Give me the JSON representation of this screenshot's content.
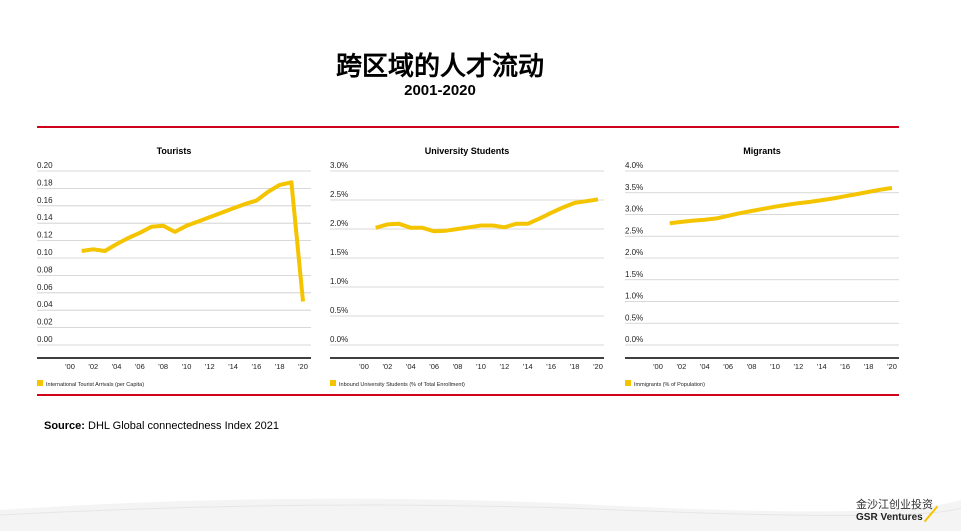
{
  "header": {
    "title": "跨区域的人才流动",
    "subtitle": "2001-2020"
  },
  "source": {
    "label": "Source:",
    "text": "DHL Global connectedness Index 2021"
  },
  "logo": {
    "cn": "金沙江创业投资",
    "en": "GSR Ventures"
  },
  "colors": {
    "line": "#f5c400",
    "rule": "#d0021b",
    "grid": "#cccccc",
    "axis": "#000000"
  },
  "chart_data": [
    {
      "type": "line",
      "title": "Tourists",
      "x": [
        2001,
        2002,
        2003,
        2004,
        2005,
        2006,
        2007,
        2008,
        2009,
        2010,
        2011,
        2012,
        2013,
        2014,
        2015,
        2016,
        2017,
        2018,
        2019,
        2020
      ],
      "x_tick_labels": [
        "'00",
        "'02",
        "'04",
        "'06",
        "'08",
        "'10",
        "'12",
        "'14",
        "'16",
        "'18",
        "'20"
      ],
      "y_tick_labels": [
        "0.20",
        "0.18",
        "0.16",
        "0.14",
        "0.12",
        "0.10",
        "0.08",
        "0.06",
        "0.04",
        "0.02",
        "0.00"
      ],
      "ylim": [
        0,
        0.2
      ],
      "xlim": [
        2000,
        2020
      ],
      "grid": true,
      "legend": "bottom-left",
      "series": [
        {
          "name": "International Tourist Arrivals (per Capita)",
          "values": [
            0.108,
            0.11,
            0.108,
            0.116,
            0.123,
            0.129,
            0.136,
            0.137,
            0.13,
            0.137,
            0.142,
            0.147,
            0.152,
            0.157,
            0.162,
            0.166,
            0.176,
            0.184,
            0.187,
            0.05
          ]
        }
      ]
    },
    {
      "type": "line",
      "title": "University Students",
      "x": [
        2001,
        2002,
        2003,
        2004,
        2005,
        2006,
        2007,
        2008,
        2009,
        2010,
        2011,
        2012,
        2013,
        2014,
        2015,
        2016,
        2017,
        2018,
        2019,
        2020
      ],
      "x_tick_labels": [
        "'00",
        "'02",
        "'04",
        "'06",
        "'08",
        "'10",
        "'12",
        "'14",
        "'16",
        "'18",
        "'20"
      ],
      "y_tick_labels": [
        "3.0%",
        "2.5%",
        "2.0%",
        "1.5%",
        "1.0%",
        "0.5%",
        "0.0%"
      ],
      "ylim": [
        0,
        3.0
      ],
      "xlim": [
        2000,
        2020
      ],
      "grid": true,
      "legend": "bottom-left",
      "series": [
        {
          "name": "Inbound University Students (% of Total Enrollment)",
          "values": [
            2.02,
            2.08,
            2.09,
            2.02,
            2.02,
            1.96,
            1.97,
            2.0,
            2.03,
            2.06,
            2.06,
            2.03,
            2.09,
            2.09,
            2.18,
            2.28,
            2.37,
            2.45,
            2.48,
            2.51
          ]
        }
      ]
    },
    {
      "type": "line",
      "title": "Migrants",
      "x": [
        2001,
        2002,
        2003,
        2004,
        2005,
        2006,
        2007,
        2008,
        2009,
        2010,
        2011,
        2012,
        2013,
        2014,
        2015,
        2016,
        2017,
        2018,
        2019,
        2020
      ],
      "x_tick_labels": [
        "'00",
        "'02",
        "'04",
        "'06",
        "'08",
        "'10",
        "'12",
        "'14",
        "'16",
        "'18",
        "'20"
      ],
      "y_tick_labels": [
        "4.0%",
        "3.5%",
        "3.0%",
        "2.5%",
        "2.0%",
        "1.5%",
        "1.0%",
        "0.5%",
        "0.0%"
      ],
      "ylim": [
        0,
        4.0
      ],
      "xlim": [
        2000,
        2020
      ],
      "grid": true,
      "legend": "bottom-left",
      "series": [
        {
          "name": "Immigrants (% of Population)",
          "values": [
            2.8,
            2.83,
            2.86,
            2.88,
            2.91,
            2.97,
            3.03,
            3.08,
            3.13,
            3.18,
            3.22,
            3.26,
            3.29,
            3.33,
            3.37,
            3.42,
            3.47,
            3.52,
            3.57,
            3.61
          ]
        }
      ]
    }
  ]
}
